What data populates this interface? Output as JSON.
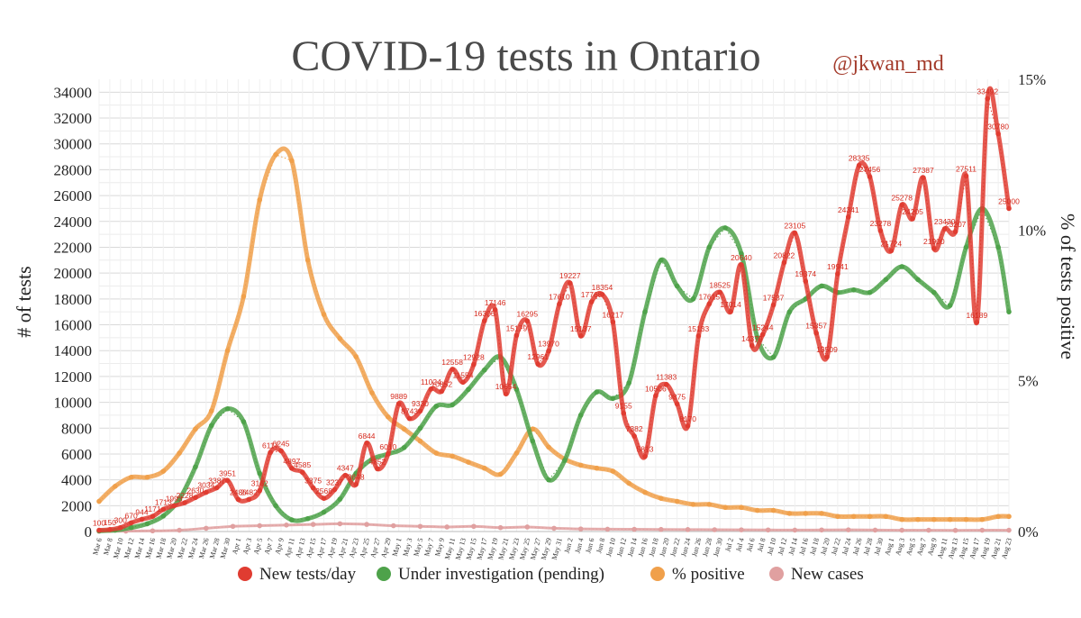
{
  "chart_data": {
    "type": "line",
    "title": "COVID-19 tests in Ontario",
    "credit": "@jkwan_md",
    "ylabel": "# of tests",
    "y2label": "% of tests positive",
    "ylim": [
      0,
      35000
    ],
    "y2lim": [
      0,
      15
    ],
    "yticks": [
      "0",
      "2000",
      "4000",
      "6000",
      "8000",
      "10000",
      "12000",
      "14000",
      "16000",
      "18000",
      "20000",
      "22000",
      "24000",
      "26000",
      "28000",
      "30000",
      "32000",
      "34000"
    ],
    "y2ticks": [
      "0%",
      "5%",
      "10%",
      "15%"
    ],
    "x_labels": [
      "Mar 6",
      "Mar 8",
      "Mar 10",
      "Mar 12",
      "Mar 14",
      "Mar 16",
      "Mar 18",
      "Mar 20",
      "Mar 22",
      "Mar 24",
      "Mar 26",
      "Mar 28",
      "Mar 30",
      "Apr 1",
      "Apr 3",
      "Apr 5",
      "Apr 7",
      "Apr 9",
      "Apr 11",
      "Apr 13",
      "Apr 15",
      "Apr 17",
      "Apr 19",
      "Apr 21",
      "Apr 23",
      "Apr 25",
      "Apr 27",
      "Apr 29",
      "May 1",
      "May 3",
      "May 5",
      "May 7",
      "May 9",
      "May 11",
      "May 13",
      "May 15",
      "May 17",
      "May 19",
      "May 21",
      "May 23",
      "May 25",
      "May 27",
      "May 29",
      "May 31",
      "Jun 2",
      "Jun 4",
      "Jun 6",
      "Jun 8",
      "Jun 10",
      "Jun 12",
      "Jun 14",
      "Jun 16",
      "Jun 18",
      "Jun 20",
      "Jun 22",
      "Jun 24",
      "Jun 26",
      "Jun 28",
      "Jun 30",
      "Jul 2",
      "Jul 4",
      "Jul 6",
      "Jul 8",
      "Jul 10",
      "Jul 12",
      "Jul 14",
      "Jul 16",
      "Jul 18",
      "Jul 20",
      "Jul 22",
      "Jul 24",
      "Jul 26",
      "Jul 28",
      "Jul 30",
      "Aug 1",
      "Aug 3",
      "Aug 5",
      "Aug 7",
      "Aug 9",
      "Aug 11",
      "Aug 13",
      "Aug 15",
      "Aug 17",
      "Aug 19",
      "Aug 21",
      "Aug 23"
    ],
    "series": [
      {
        "name": "New tests/day",
        "color": "#e03c31",
        "axis": "left",
        "x": [
          0,
          2,
          4,
          6,
          8,
          10,
          12,
          14,
          16,
          18,
          20,
          22,
          24,
          26,
          28,
          30,
          32,
          34,
          36,
          38,
          40,
          42,
          44,
          46,
          48,
          50,
          52,
          54,
          56,
          58,
          60,
          62,
          64,
          66,
          68,
          70,
          72,
          74,
          76,
          78,
          80,
          82,
          84,
          86,
          88,
          90,
          92,
          94,
          96,
          98,
          100,
          102,
          104,
          106,
          108,
          110,
          112,
          114,
          116,
          118,
          120,
          122,
          124,
          126,
          128,
          130,
          132,
          134,
          136,
          138,
          140,
          142,
          144,
          146,
          148,
          150,
          152,
          154,
          156,
          158,
          160,
          162,
          164,
          166,
          168,
          170
        ],
        "values": [
          100,
          150,
          300,
          670,
          944,
          1171,
          1713,
          1993,
          2228,
          2630,
          3034,
          3387,
          3951,
          2486,
          2482,
          3162,
          6117,
          6245,
          4897,
          4585,
          3375,
          2568,
          3237,
          4347,
          3648,
          6844,
          4852,
          6010,
          9889,
          8743,
          9330,
          11024,
          10852,
          12558,
          11554,
          12928,
          16305,
          17146,
          10654,
          15179,
          16295,
          12961,
          13970,
          17610,
          19227,
          15137,
          17768,
          18354,
          16217,
          9155,
          7382,
          5813,
          10506,
          11383,
          9875,
          8170,
          15133,
          17615,
          18525,
          17014,
          20640,
          14379,
          15244,
          17537,
          20822,
          23105,
          19374,
          15357,
          13509,
          19941,
          24341,
          28335,
          27456,
          23278,
          21724,
          25278,
          24205,
          27387,
          21900,
          23430,
          23207,
          27511,
          16189,
          33492,
          30780,
          25000
        ],
        "labels": [
          "100",
          "150",
          "300",
          "670",
          "944",
          "1171",
          "1713",
          "1993",
          "2228",
          "2630",
          "3034",
          "3387",
          "3951",
          "2486",
          "2482",
          "3162",
          "6117",
          "6245",
          "4897",
          "4585",
          "3375",
          "2568",
          "3237",
          "4347",
          "3648",
          "6844",
          "4852",
          "6010",
          "9889",
          "8743",
          "9330",
          "11024",
          "10852",
          "12558",
          "11554",
          "12928",
          "16305",
          "17146",
          "10654",
          "15179",
          "16295",
          "12961",
          "13970",
          "17610",
          "19227",
          "15137",
          "17768",
          "18354",
          "16217",
          "9155",
          "7382",
          "5813",
          "10506",
          "11383",
          "9875",
          "8170",
          "15133",
          "17615",
          "18525",
          "17014",
          "20640",
          "14379",
          "15244",
          "17537",
          "20822",
          "23105",
          "19374",
          "15357",
          "13509",
          "19941",
          "24341",
          "28335",
          "27456",
          "23278",
          "21724",
          "25278",
          "24205",
          "27387",
          "21900",
          "23430",
          "23207",
          "27511",
          "16189",
          "33492",
          "30780",
          "25000"
        ]
      },
      {
        "name": "Under investigation (pending)",
        "color": "#4ea24a",
        "axis": "left",
        "x": [
          0,
          3,
          6,
          9,
          12,
          15,
          18,
          21,
          24,
          27,
          30,
          33,
          36,
          39,
          42,
          45,
          48,
          51,
          54,
          57,
          60,
          63,
          66,
          69,
          72,
          75,
          78,
          81,
          84,
          87,
          90,
          93,
          96,
          99,
          102,
          105,
          108,
          111,
          114,
          117,
          120,
          123,
          126,
          129,
          132,
          135,
          138,
          141,
          144,
          147,
          150,
          153,
          156,
          159,
          162,
          165,
          168,
          170
        ],
        "values": [
          50,
          100,
          300,
          600,
          1200,
          2500,
          5000,
          8200,
          9500,
          8500,
          4500,
          2000,
          900,
          1000,
          1500,
          2500,
          4500,
          5600,
          6000,
          6500,
          8000,
          9700,
          9800,
          11000,
          12500,
          13500,
          11000,
          7000,
          4000,
          5500,
          9000,
          10800,
          10300,
          11500,
          17000,
          21000,
          19000,
          18000,
          22000,
          23500,
          21500,
          15000,
          13500,
          17000,
          18000,
          19000,
          18500,
          18700,
          18500,
          19500,
          20500,
          19500,
          18500,
          17500,
          22000,
          25000,
          22000,
          17000
        ],
        "labels": [
          "50",
          "100",
          "300",
          "600",
          "1200",
          "2500",
          "5000",
          "8200",
          "9500",
          "8500",
          "4500",
          "2000",
          "900",
          "1000",
          "1500",
          "2500",
          "4500",
          "5600",
          "6000",
          "6500",
          "8000",
          "9700",
          "9800",
          "11000",
          "12500",
          "13500",
          "11000",
          "7000",
          "4000",
          "5500",
          "9000",
          "10800",
          "10300",
          "11500",
          "17000",
          "21000",
          "19000",
          "18000",
          "22000",
          "23500",
          "21500",
          "15000",
          "13500",
          "17000",
          "18000",
          "19000",
          "18500",
          "18700",
          "18500",
          "19500",
          "20500",
          "19500",
          "18500",
          "17500",
          "22000",
          "25000",
          "22000",
          "17000"
        ]
      },
      {
        "name": "% positive",
        "color": "#f0a04b",
        "axis": "right",
        "x": [
          0,
          3,
          6,
          9,
          12,
          15,
          18,
          21,
          24,
          27,
          30,
          33,
          36,
          39,
          42,
          45,
          48,
          51,
          54,
          57,
          60,
          63,
          66,
          69,
          72,
          75,
          78,
          81,
          84,
          87,
          90,
          93,
          96,
          99,
          102,
          105,
          108,
          111,
          114,
          117,
          120,
          123,
          126,
          129,
          132,
          135,
          138,
          141,
          144,
          147,
          150,
          153,
          156,
          159,
          162,
          165,
          168,
          170
        ],
        "values": [
          1.0,
          1.5,
          1.8,
          1.8,
          2.0,
          2.6,
          3.4,
          4.0,
          6.0,
          7.8,
          11.0,
          12.5,
          12.3,
          9.0,
          7.2,
          6.4,
          5.8,
          4.6,
          3.8,
          3.4,
          3.0,
          2.6,
          2.5,
          2.3,
          2.1,
          1.9,
          2.6,
          3.4,
          2.8,
          2.4,
          2.2,
          2.1,
          2.0,
          1.6,
          1.3,
          1.1,
          1.0,
          0.9,
          0.9,
          0.8,
          0.8,
          0.7,
          0.7,
          0.6,
          0.6,
          0.6,
          0.5,
          0.5,
          0.5,
          0.5,
          0.4,
          0.4,
          0.4,
          0.4,
          0.4,
          0.4,
          0.5,
          0.5
        ],
        "labels": [
          "1.0%",
          "1.5%",
          "1.8%",
          "1.8%",
          "2.0%",
          "2.6%",
          "3.4%",
          "4.0%",
          "6.0%",
          "7.8%",
          "11.0%",
          "12.5%",
          "12.3%",
          "9.0%",
          "7.2%",
          "6.4%",
          "5.8%",
          "4.6%",
          "3.8%",
          "3.4%",
          "3.0%",
          "2.6%",
          "2.5%",
          "2.3%",
          "2.1%",
          "1.9%",
          "2.6%",
          "3.4%",
          "2.8%",
          "2.4%",
          "2.2%",
          "2.1%",
          "2.0%",
          "1.6%",
          "1.3%",
          "1.1%",
          "1.0%",
          "0.9%",
          "0.9%",
          "0.8%",
          "0.8%",
          "0.7%",
          "0.7%",
          "0.6%",
          "0.6%",
          "0.6%",
          "0.5%",
          "0.5%",
          "0.5%",
          "0.5%",
          "0.4%",
          "0.4%",
          "0.4%",
          "0.4%",
          "0.4%",
          "0.4%",
          "0.5%",
          "0.5%"
        ]
      },
      {
        "name": "New cases",
        "color": "#e0a0a0",
        "axis": "left",
        "x": [
          0,
          5,
          10,
          15,
          20,
          25,
          30,
          35,
          40,
          45,
          50,
          55,
          60,
          65,
          70,
          75,
          80,
          85,
          90,
          95,
          100,
          105,
          110,
          115,
          120,
          125,
          130,
          135,
          140,
          145,
          150,
          155,
          160,
          165,
          170
        ],
        "values": [
          20,
          30,
          50,
          100,
          250,
          400,
          450,
          500,
          550,
          600,
          550,
          450,
          400,
          350,
          400,
          300,
          350,
          250,
          200,
          180,
          170,
          160,
          150,
          140,
          130,
          120,
          110,
          120,
          130,
          110,
          100,
          100,
          90,
          100,
          100
        ],
        "labels": [
          "20",
          "30",
          "50",
          "100",
          "250",
          "400",
          "450",
          "500",
          "550",
          "600",
          "550",
          "450",
          "400",
          "350",
          "400",
          "300",
          "350",
          "250",
          "200",
          "180",
          "170",
          "160",
          "150",
          "140",
          "130",
          "120",
          "110",
          "120",
          "130",
          "110",
          "100",
          "100",
          "90",
          "100",
          "100"
        ]
      }
    ],
    "legend": [
      {
        "label": "New tests/day",
        "color": "#e03c31"
      },
      {
        "label": "Under investigation (pending)",
        "color": "#4ea24a"
      },
      {
        "label": "% positive",
        "color": "#f0a04b"
      },
      {
        "label": "New cases",
        "color": "#e0a0a0"
      }
    ]
  }
}
